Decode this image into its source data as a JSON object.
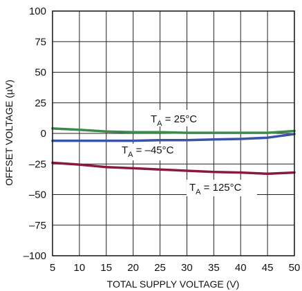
{
  "chart_data": {
    "type": "line",
    "title": "",
    "xlabel": "TOTAL SUPPLY VOLTAGE (V)",
    "ylabel": "OFFSET VOLTAGE (µV)",
    "xlim": [
      5,
      50
    ],
    "ylim": [
      -100,
      100
    ],
    "x_ticks": [
      "5",
      "10",
      "15",
      "20",
      "25",
      "30",
      "35",
      "40",
      "45",
      "50"
    ],
    "y_ticks": [
      "100",
      "75",
      "50",
      "25",
      "0",
      "–25",
      "–50",
      "–75",
      "–100"
    ],
    "grid": true,
    "series": [
      {
        "name": "TA = 25°C",
        "color": "#3a8a4a",
        "x": [
          5,
          10,
          15,
          20,
          25,
          30,
          35,
          40,
          45,
          50
        ],
        "y": [
          4,
          3,
          1.5,
          1,
          1,
          0.5,
          0.5,
          0.5,
          0.5,
          2
        ]
      },
      {
        "name": "TA = –45°C",
        "color": "#3a52a8",
        "x": [
          5,
          10,
          15,
          20,
          25,
          30,
          35,
          40,
          45,
          50
        ],
        "y": [
          -6,
          -6,
          -6,
          -6,
          -5.5,
          -5.5,
          -5,
          -4.5,
          -3.5,
          -0.5
        ]
      },
      {
        "name": "TA = 125°C",
        "color": "#8b1a3a",
        "x": [
          5,
          10,
          15,
          20,
          25,
          30,
          35,
          40,
          45,
          50
        ],
        "y": [
          -24,
          -25.5,
          -27.5,
          -28.5,
          -29.5,
          -30.5,
          -31.5,
          -32,
          -33,
          -32
        ]
      }
    ],
    "annotations": [
      {
        "main": "T",
        "sub": "A",
        "rest": " = 25°C"
      },
      {
        "main": "T",
        "sub": "A",
        "rest": " = –45°C"
      },
      {
        "main": "T",
        "sub": "A",
        "rest": " = 125°C"
      }
    ]
  }
}
